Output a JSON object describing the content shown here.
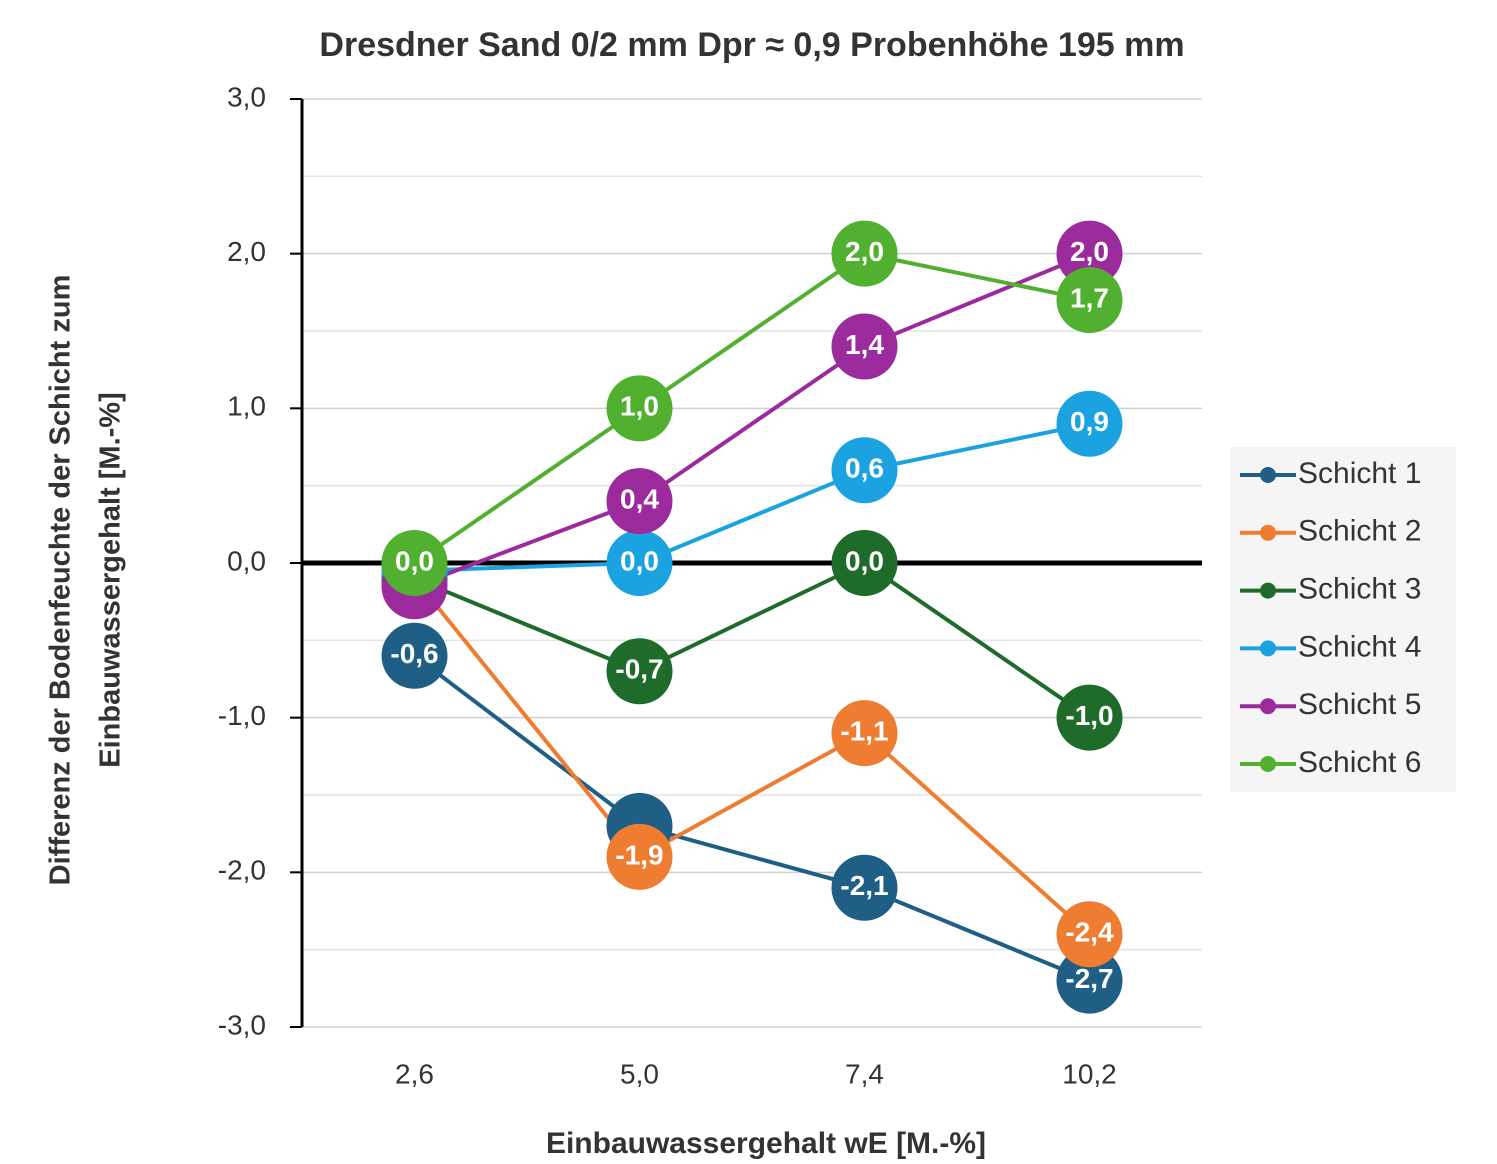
{
  "chart_data": {
    "type": "line",
    "title": "Dresdner Sand 0/2 mm Dpr ≈ 0,9 Probenhöhe 195 mm",
    "x_label": "Einbauwassergehalt wE [M.-%]",
    "y_label": [
      "Differenz der Bodenfeuchte der Schicht zum",
      "Einbauwassergehalt  [M.-%]"
    ],
    "categories": [
      "2,6",
      "5,0",
      "7,4",
      "10,2"
    ],
    "ylim": [
      -3,
      3
    ],
    "yticks": [
      {
        "value": -3,
        "label": "-3,0"
      },
      {
        "value": -2,
        "label": "-2,0"
      },
      {
        "value": -1,
        "label": "-1,0"
      },
      {
        "value": 0,
        "label": "0,0"
      },
      {
        "value": 1,
        "label": "1,0"
      },
      {
        "value": 2,
        "label": "2,0"
      },
      {
        "value": 3,
        "label": "3,0"
      }
    ],
    "y_minor_ticks": [
      -2.5,
      -1.5,
      -0.5,
      0.5,
      1.5,
      2.5
    ],
    "grid": true,
    "legend": "right",
    "series": [
      {
        "name": "Schicht 1",
        "color": "#1f5f86",
        "values": [
          -0.6,
          -1.7,
          -2.1,
          -2.7
        ],
        "value_labels": [
          "-0,6",
          null,
          "-2,1",
          "-2,7"
        ]
      },
      {
        "name": "Schicht 2",
        "color": "#ee7d31",
        "values": [
          -0.1,
          -1.9,
          -1.1,
          -2.4
        ],
        "value_labels": [
          null,
          "-1,9",
          "-1,1",
          "-2,4"
        ]
      },
      {
        "name": "Schicht 3",
        "color": "#1e6b2a",
        "values": [
          -0.1,
          -0.7,
          0.0,
          -1.0
        ],
        "value_labels": [
          null,
          "-0,7",
          "0,0",
          "-1,0"
        ]
      },
      {
        "name": "Schicht 4",
        "color": "#1aa3e0",
        "values": [
          -0.05,
          0.0,
          0.6,
          0.9
        ],
        "value_labels": [
          null,
          "0,0",
          "0,6",
          "0,9"
        ]
      },
      {
        "name": "Schicht 5",
        "color": "#9b2a9d",
        "values": [
          -0.15,
          0.4,
          1.4,
          2.0
        ],
        "value_labels": [
          null,
          "0,4",
          "1,4",
          "2,0"
        ]
      },
      {
        "name": "Schicht 6",
        "color": "#52b031",
        "values": [
          0.0,
          1.0,
          2.0,
          1.7
        ],
        "value_labels": [
          "0,0",
          "1,0",
          "2,0",
          "1,7"
        ]
      }
    ]
  }
}
